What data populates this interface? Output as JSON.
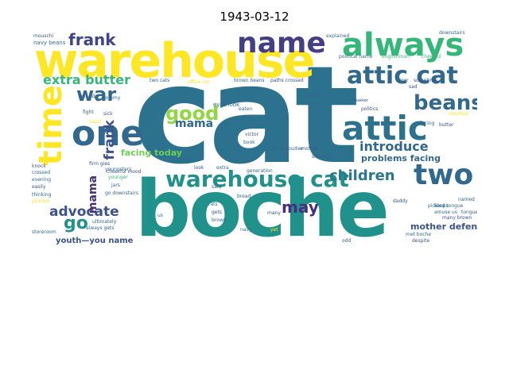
{
  "title": "1943-03-12",
  "words": [
    {
      "text": "cat",
      "color": "#2c728e"
    },
    {
      "text": "boche",
      "color": "#21918c"
    },
    {
      "text": "warehouse",
      "color": "#fde725"
    },
    {
      "text": "always",
      "color": "#35b779"
    },
    {
      "text": "name",
      "color": "#433e85"
    },
    {
      "text": "attic cat",
      "color": "#31688e"
    },
    {
      "text": "attic",
      "color": "#2c728e"
    },
    {
      "text": "one",
      "color": "#31688e"
    },
    {
      "text": "time",
      "color": "#fde725"
    },
    {
      "text": "warehouse cat",
      "color": "#21918c"
    },
    {
      "text": "two",
      "color": "#31688e"
    },
    {
      "text": "beans",
      "color": "#31688e"
    },
    {
      "text": "good",
      "color": "#90d743"
    },
    {
      "text": "war",
      "color": "#31688e"
    },
    {
      "text": "frank",
      "color": "#414487"
    },
    {
      "text": "extra butter",
      "color": "#35b779"
    },
    {
      "text": "mama",
      "color": "#31688e"
    },
    {
      "text": "children",
      "color": "#2a788e"
    },
    {
      "text": "introduce",
      "color": "#31688e"
    },
    {
      "text": "advocate",
      "color": "#3b528b"
    },
    {
      "text": "may",
      "color": "#472d7b"
    },
    {
      "text": "go",
      "color": "#21918c"
    },
    {
      "text": "frank",
      "color": "#3b528b"
    },
    {
      "text": "facing today",
      "color": "#6ece58"
    },
    {
      "text": "problems facing",
      "color": "#31688e"
    },
    {
      "text": "mother defends",
      "color": "#3b528b"
    },
    {
      "text": "youth—you name",
      "color": "#3b528b"
    },
    {
      "text": "mama",
      "color": "#472d7b"
    }
  ],
  "small_words": [
    "looking",
    "mouschi",
    "navy beans",
    "two cats",
    "office cat",
    "brown beans",
    "paths crossed",
    "explained",
    "political name",
    "englishman",
    "cheerful",
    "family saga",
    "fire",
    "canceled",
    "downstairs",
    "went",
    "bakker",
    "boudier",
    "serving",
    "stand",
    "feast",
    "sad",
    "resulted",
    "tommy",
    "eyes look",
    "bay",
    "got rid",
    "fight",
    "sick",
    "burst",
    "victor",
    "book",
    "mother",
    "rid",
    "skirmish",
    "knock",
    "crossed",
    "evening",
    "firm gies",
    "spoiled",
    "thinking",
    "pickled",
    "easily",
    "storeroom",
    "jars",
    "ultimately",
    "always gets",
    "cheerful mood",
    "younger",
    "hiding",
    "look",
    "extra",
    "generation",
    "bread",
    "rats",
    "gets",
    "brown",
    "many",
    "navy",
    "daddy",
    "keeps",
    "amuse us",
    "tongue",
    "pickled tongue",
    "named",
    "many brown",
    "met boche",
    "despite",
    "odd",
    "evening serving",
    "gies",
    "youngsters",
    "go downstairs",
    "said",
    "eyes",
    "us",
    "paths",
    "dealing",
    "mood",
    "yet",
    "eaten",
    "bakker boudier",
    "politics",
    "door",
    "sometime",
    "butter",
    "facing",
    "sad"
  ]
}
